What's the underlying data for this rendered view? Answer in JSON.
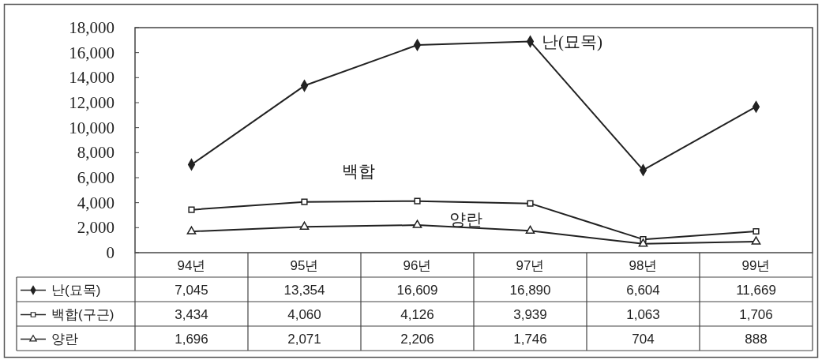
{
  "chart_data": {
    "type": "line",
    "categories": [
      "94년",
      "95년",
      "96년",
      "97년",
      "98년",
      "99년"
    ],
    "series": [
      {
        "name": "난(묘목)",
        "color": "#222222",
        "marker": "diamond",
        "values": [
          7045,
          13354,
          16609,
          16890,
          6604,
          11669
        ],
        "value_labels": [
          "7,045",
          "13,354",
          "16,609",
          "16,890",
          "6,604",
          "11,669"
        ]
      },
      {
        "name": "백합(구근)",
        "color": "#222222",
        "marker": "square",
        "values": [
          3434,
          4060,
          4126,
          3939,
          1063,
          1706
        ],
        "value_labels": [
          "3,434",
          "4,060",
          "4,126",
          "3,939",
          "1,063",
          "1,706"
        ]
      },
      {
        "name": "양란",
        "color": "#222222",
        "marker": "triangle",
        "values": [
          1696,
          2071,
          2206,
          1746,
          704,
          888
        ],
        "value_labels": [
          "1,696",
          "2,071",
          "2,206",
          "1,746",
          "704",
          "888"
        ]
      }
    ],
    "ylim": [
      0,
      18000
    ],
    "yticks": [
      0,
      {
        "value": 2000,
        "label": "2,000"
      },
      {
        "value": 4000,
        "label": "4,000"
      },
      {
        "value": 6000,
        "label": "6,000"
      },
      {
        "value": 8000,
        "label": "8,000"
      },
      {
        "value": 10000,
        "label": "10,000"
      },
      {
        "value": 12000,
        "label": "12,000"
      },
      {
        "value": 14000,
        "label": "14,000"
      },
      {
        "value": 16000,
        "label": "16,000"
      },
      {
        "value": 18000,
        "label": "18,000"
      }
    ],
    "annotations": [
      "난(묘목)",
      "백합",
      "양란"
    ],
    "legend": "bottom"
  }
}
